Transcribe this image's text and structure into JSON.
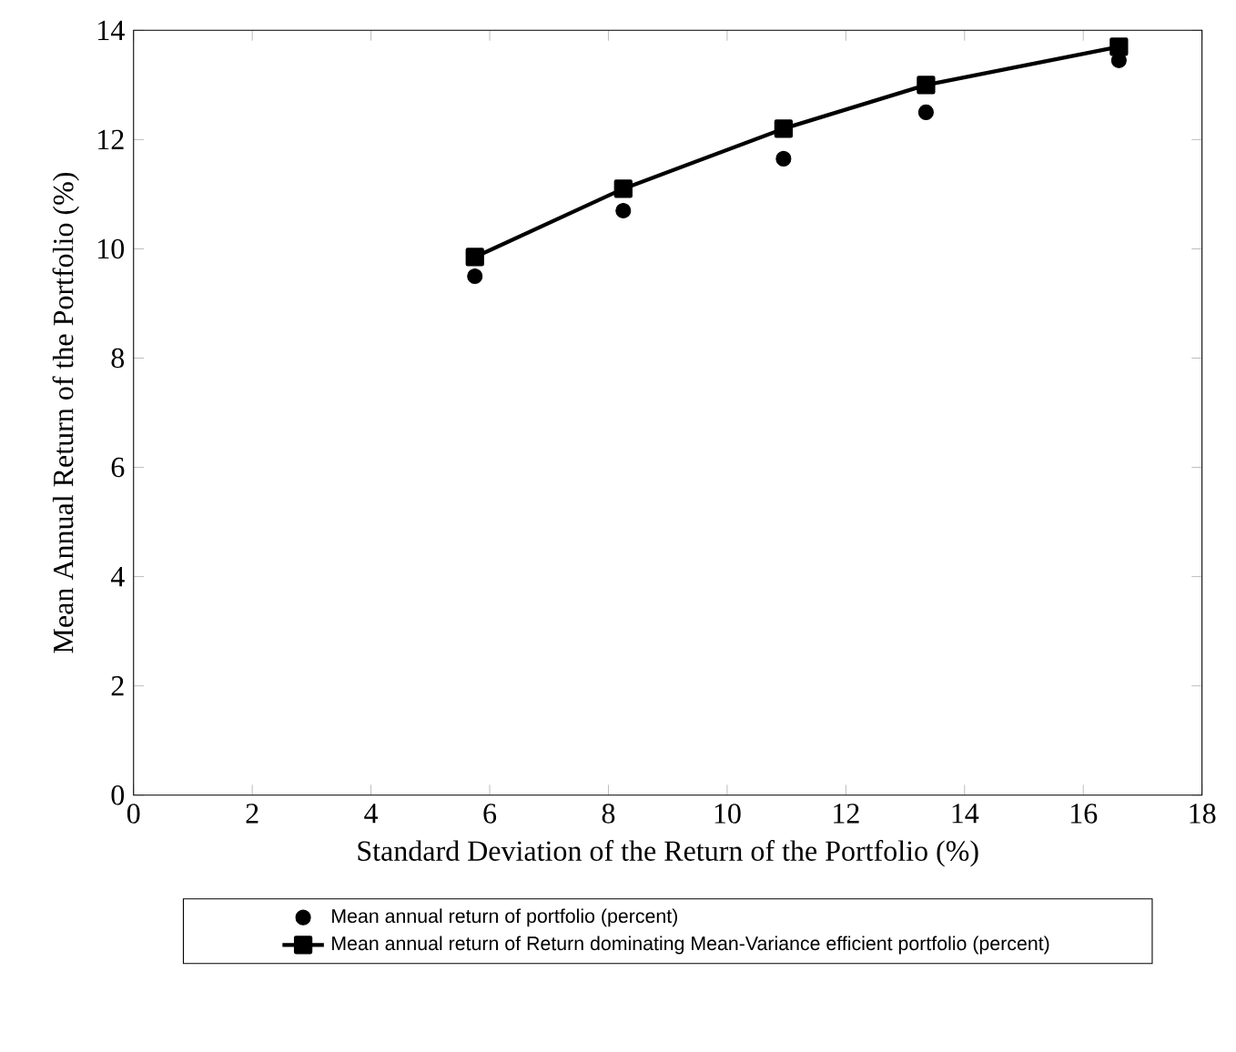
{
  "chart_data": {
    "type": "line",
    "xlabel": "Standard Deviation of the Return of the Portfolio (%)",
    "ylabel": "Mean Annual Return of the Portfolio (%)",
    "x": [
      5.75,
      8.25,
      10.95,
      13.35,
      16.6
    ],
    "series": [
      {
        "name": "Mean annual return of portfolio (percent)",
        "type": "scatter",
        "marker": "circle",
        "color": "#000000",
        "values": [
          9.5,
          10.7,
          11.65,
          12.5,
          13.45
        ]
      },
      {
        "name": "Mean annual return of Return dominating Mean-Variance efficient portfolio (percent)",
        "marker": "square",
        "line_style": "solid",
        "color": "#000000",
        "values": [
          9.85,
          11.1,
          12.2,
          13.0,
          13.7
        ]
      }
    ],
    "xlim": [
      0,
      18
    ],
    "ylim": [
      0,
      14
    ],
    "xticks": [
      0,
      2,
      4,
      6,
      8,
      10,
      12,
      14,
      16,
      18
    ],
    "yticks": [
      0,
      2,
      4,
      6,
      8,
      10,
      12,
      14
    ],
    "grid": false,
    "legend": "bottom"
  }
}
